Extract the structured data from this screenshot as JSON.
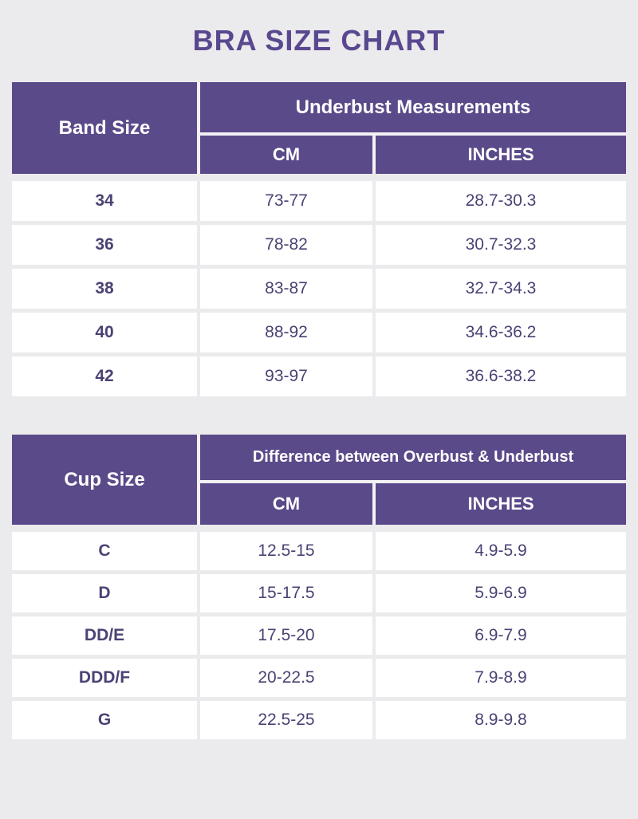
{
  "title": "BRA SIZE CHART",
  "colors": {
    "header_purple": "#5b4a8a",
    "title_purple": "#59478f",
    "body_text": "#4b4274",
    "background": "#ebeaec",
    "cell_white": "#ffffff"
  },
  "chart_data": [
    {
      "type": "table",
      "corner_header": "Band Size",
      "group_header": "Underbust Measurements",
      "sub_columns": {
        "cm": "CM",
        "inches": "INCHES"
      },
      "columns": [
        "Band Size",
        "CM",
        "INCHES"
      ],
      "rows": [
        [
          "34",
          "73-77",
          "28.7-30.3"
        ],
        [
          "36",
          "78-82",
          "30.7-32.3"
        ],
        [
          "38",
          "83-87",
          "32.7-34.3"
        ],
        [
          "40",
          "88-92",
          "34.6-36.2"
        ],
        [
          "42",
          "93-97",
          "36.6-38.2"
        ]
      ]
    },
    {
      "type": "table",
      "corner_header": "Cup Size",
      "group_header": "Difference between Overbust & Underbust",
      "sub_columns": {
        "cm": "CM",
        "inches": "INCHES"
      },
      "columns": [
        "Cup Size",
        "CM",
        "INCHES"
      ],
      "rows": [
        [
          "C",
          "12.5-15",
          "4.9-5.9"
        ],
        [
          "D",
          "15-17.5",
          "5.9-6.9"
        ],
        [
          "DD/E",
          "17.5-20",
          "6.9-7.9"
        ],
        [
          "DDD/F",
          "20-22.5",
          "7.9-8.9"
        ],
        [
          "G",
          "22.5-25",
          "8.9-9.8"
        ]
      ]
    }
  ]
}
